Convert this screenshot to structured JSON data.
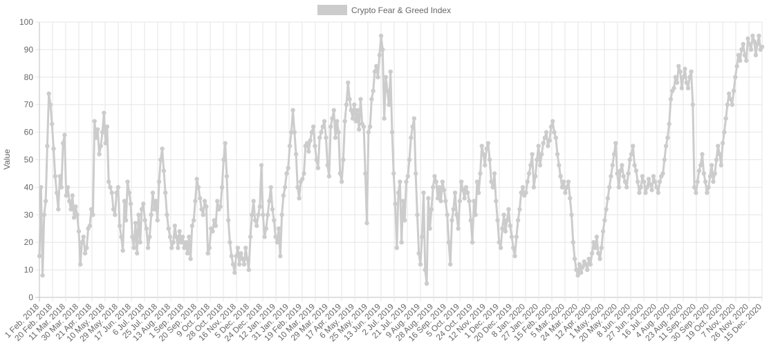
{
  "chart_data": {
    "type": "line",
    "title": "",
    "xlabel": "",
    "ylabel": "Value",
    "ylim": [
      0,
      100
    ],
    "yticks": [
      0,
      10,
      20,
      30,
      40,
      50,
      60,
      70,
      80,
      90,
      100
    ],
    "grid": true,
    "legend_position": "top-center",
    "series": [
      {
        "name": "Crypto Fear & Greed Index",
        "color": "#cccccc",
        "x_start": "1 Feb. 2018",
        "x_end": "21 Dec. 2020",
        "values": [
          15,
          40,
          8,
          30,
          35,
          55,
          74,
          70,
          63,
          54,
          44,
          38,
          32,
          44,
          40,
          56,
          59,
          37,
          40,
          35,
          32,
          37,
          29,
          33,
          30,
          24,
          12,
          20,
          22,
          16,
          18,
          25,
          26,
          32,
          30,
          64,
          58,
          61,
          52,
          55,
          60,
          67,
          56,
          62,
          42,
          40,
          38,
          32,
          30,
          38,
          40,
          26,
          22,
          17,
          35,
          28,
          42,
          38,
          34,
          22,
          18,
          27,
          16,
          30,
          20,
          32,
          34,
          28,
          25,
          18,
          22,
          30,
          38,
          32,
          35,
          28,
          42,
          50,
          54,
          46,
          38,
          30,
          25,
          22,
          18,
          20,
          26,
          22,
          18,
          24,
          20,
          22,
          18,
          20,
          16,
          22,
          14,
          26,
          28,
          35,
          43,
          40,
          36,
          32,
          30,
          35,
          33,
          16,
          18,
          25,
          24,
          28,
          26,
          35,
          32,
          33,
          40,
          50,
          56,
          44,
          28,
          20,
          15,
          12,
          9,
          15,
          18,
          12,
          16,
          14,
          12,
          18,
          14,
          10,
          22,
          30,
          35,
          28,
          26,
          30,
          33,
          48,
          30,
          22,
          25,
          30,
          35,
          40,
          32,
          28,
          22,
          20,
          25,
          15,
          30,
          37,
          40,
          45,
          47,
          55,
          60,
          68,
          60,
          52,
          40,
          36,
          42,
          43,
          45,
          55,
          56,
          53,
          57,
          60,
          62,
          55,
          50,
          47,
          58,
          60,
          62,
          64,
          58,
          48,
          44,
          62,
          65,
          68,
          58,
          64,
          60,
          45,
          42,
          50,
          64,
          70,
          78,
          72,
          68,
          65,
          70,
          64,
          68,
          61,
          72,
          63,
          62,
          45,
          27,
          60,
          62,
          72,
          75,
          82,
          84,
          80,
          88,
          95,
          90,
          65,
          80,
          75,
          70,
          82,
          60,
          45,
          34,
          18,
          38,
          42,
          20,
          35,
          28,
          42,
          44,
          50,
          58,
          62,
          65,
          45,
          30,
          16,
          12,
          22,
          38,
          10,
          5,
          36,
          25,
          32,
          40,
          44,
          42,
          36,
          40,
          35,
          42,
          39,
          35,
          30,
          20,
          12,
          28,
          32,
          38,
          30,
          25,
          35,
          42,
          39,
          36,
          40,
          38,
          35,
          28,
          20,
          35,
          30,
          42,
          38,
          45,
          55,
          52,
          48,
          54,
          56,
          50,
          42,
          40,
          45,
          35,
          28,
          20,
          18,
          25,
          30,
          24,
          28,
          32,
          26,
          22,
          18,
          15,
          22,
          28,
          32,
          38,
          40,
          37,
          38,
          42,
          45,
          48,
          52,
          40,
          44,
          50,
          55,
          48,
          52,
          56,
          58,
          60,
          55,
          57,
          62,
          64,
          60,
          58,
          52,
          48,
          44,
          40,
          42,
          38,
          40,
          42,
          36,
          30,
          20,
          14,
          10,
          8,
          12,
          9,
          11,
          13,
          12,
          10,
          14,
          12,
          16,
          20,
          18,
          22,
          16,
          14,
          18,
          24,
          28,
          32,
          36,
          40,
          44,
          48,
          52,
          56,
          45,
          40,
          46,
          48,
          44,
          42,
          40,
          45,
          50,
          52,
          55,
          48,
          46,
          42,
          38,
          40,
          44,
          42,
          38,
          40,
          43,
          41,
          39,
          44,
          42,
          40,
          38,
          42,
          44,
          45,
          50,
          55,
          58,
          63,
          72,
          75,
          76,
          80,
          78,
          84,
          82,
          76,
          80,
          83,
          78,
          76,
          80,
          82,
          70,
          40,
          38,
          42,
          46,
          48,
          52,
          45,
          42,
          38,
          40,
          44,
          48,
          42,
          45,
          50,
          55,
          52,
          48,
          56,
          60,
          65,
          70,
          74,
          72,
          70,
          75,
          80,
          84,
          88,
          86,
          90,
          92,
          88,
          86,
          94,
          92,
          90,
          95,
          93,
          88,
          92,
          95,
          90,
          91
        ]
      }
    ],
    "x_tick_labels": [
      "1 Feb. 2018",
      "20 Feb. 2018",
      "11 Mar. 2018",
      "30 Mar. 2018",
      "21 Apr. 2018",
      "10 May. 2018",
      "29 May. 2018",
      "17 Jun. 2018",
      "6 Jul. 2018",
      "25 Jul. 2018",
      "13 Aug. 2018",
      "1 Sep. 2018",
      "20 Sep. 2018",
      "9 Oct. 2018",
      "28 Oct. 2018",
      "16 Nov. 2018",
      "5 Dec. 2018",
      "24 Dec. 2018",
      "12 Jan. 2019",
      "31 Jan. 2019",
      "19 Feb. 2019",
      "10 Mar. 2019",
      "29 Mar. 2019",
      "17 Apr. 2019",
      "6 May. 2019",
      "25 May. 2019",
      "13 Jun. 2019",
      "2 Jul. 2019",
      "21 Jul. 2019",
      "9 Aug. 2019",
      "28 Aug. 2019",
      "16 Sep. 2019",
      "5 Oct. 2019",
      "24 Oct. 2019",
      "12 Nov. 2019",
      "1 Dec. 2019",
      "20 Dec. 2019",
      "8 Jan. 2020",
      "27 Jan. 2020",
      "15 Feb. 2020",
      "5 Mar. 2020",
      "24 Mar. 2020",
      "12 Apr. 2020",
      "1 May. 2020",
      "20 May. 2020",
      "8 Jun. 2020",
      "27 Jun. 2020",
      "16 Jul. 2020",
      "4 Aug. 2020",
      "23 Aug. 2020",
      "11 Sep. 2020",
      "30 Sep. 2020",
      "19 Oct. 2020",
      "7 Nov. 2020",
      "26 Nov. 2020",
      "15 Dec. 2020"
    ]
  }
}
